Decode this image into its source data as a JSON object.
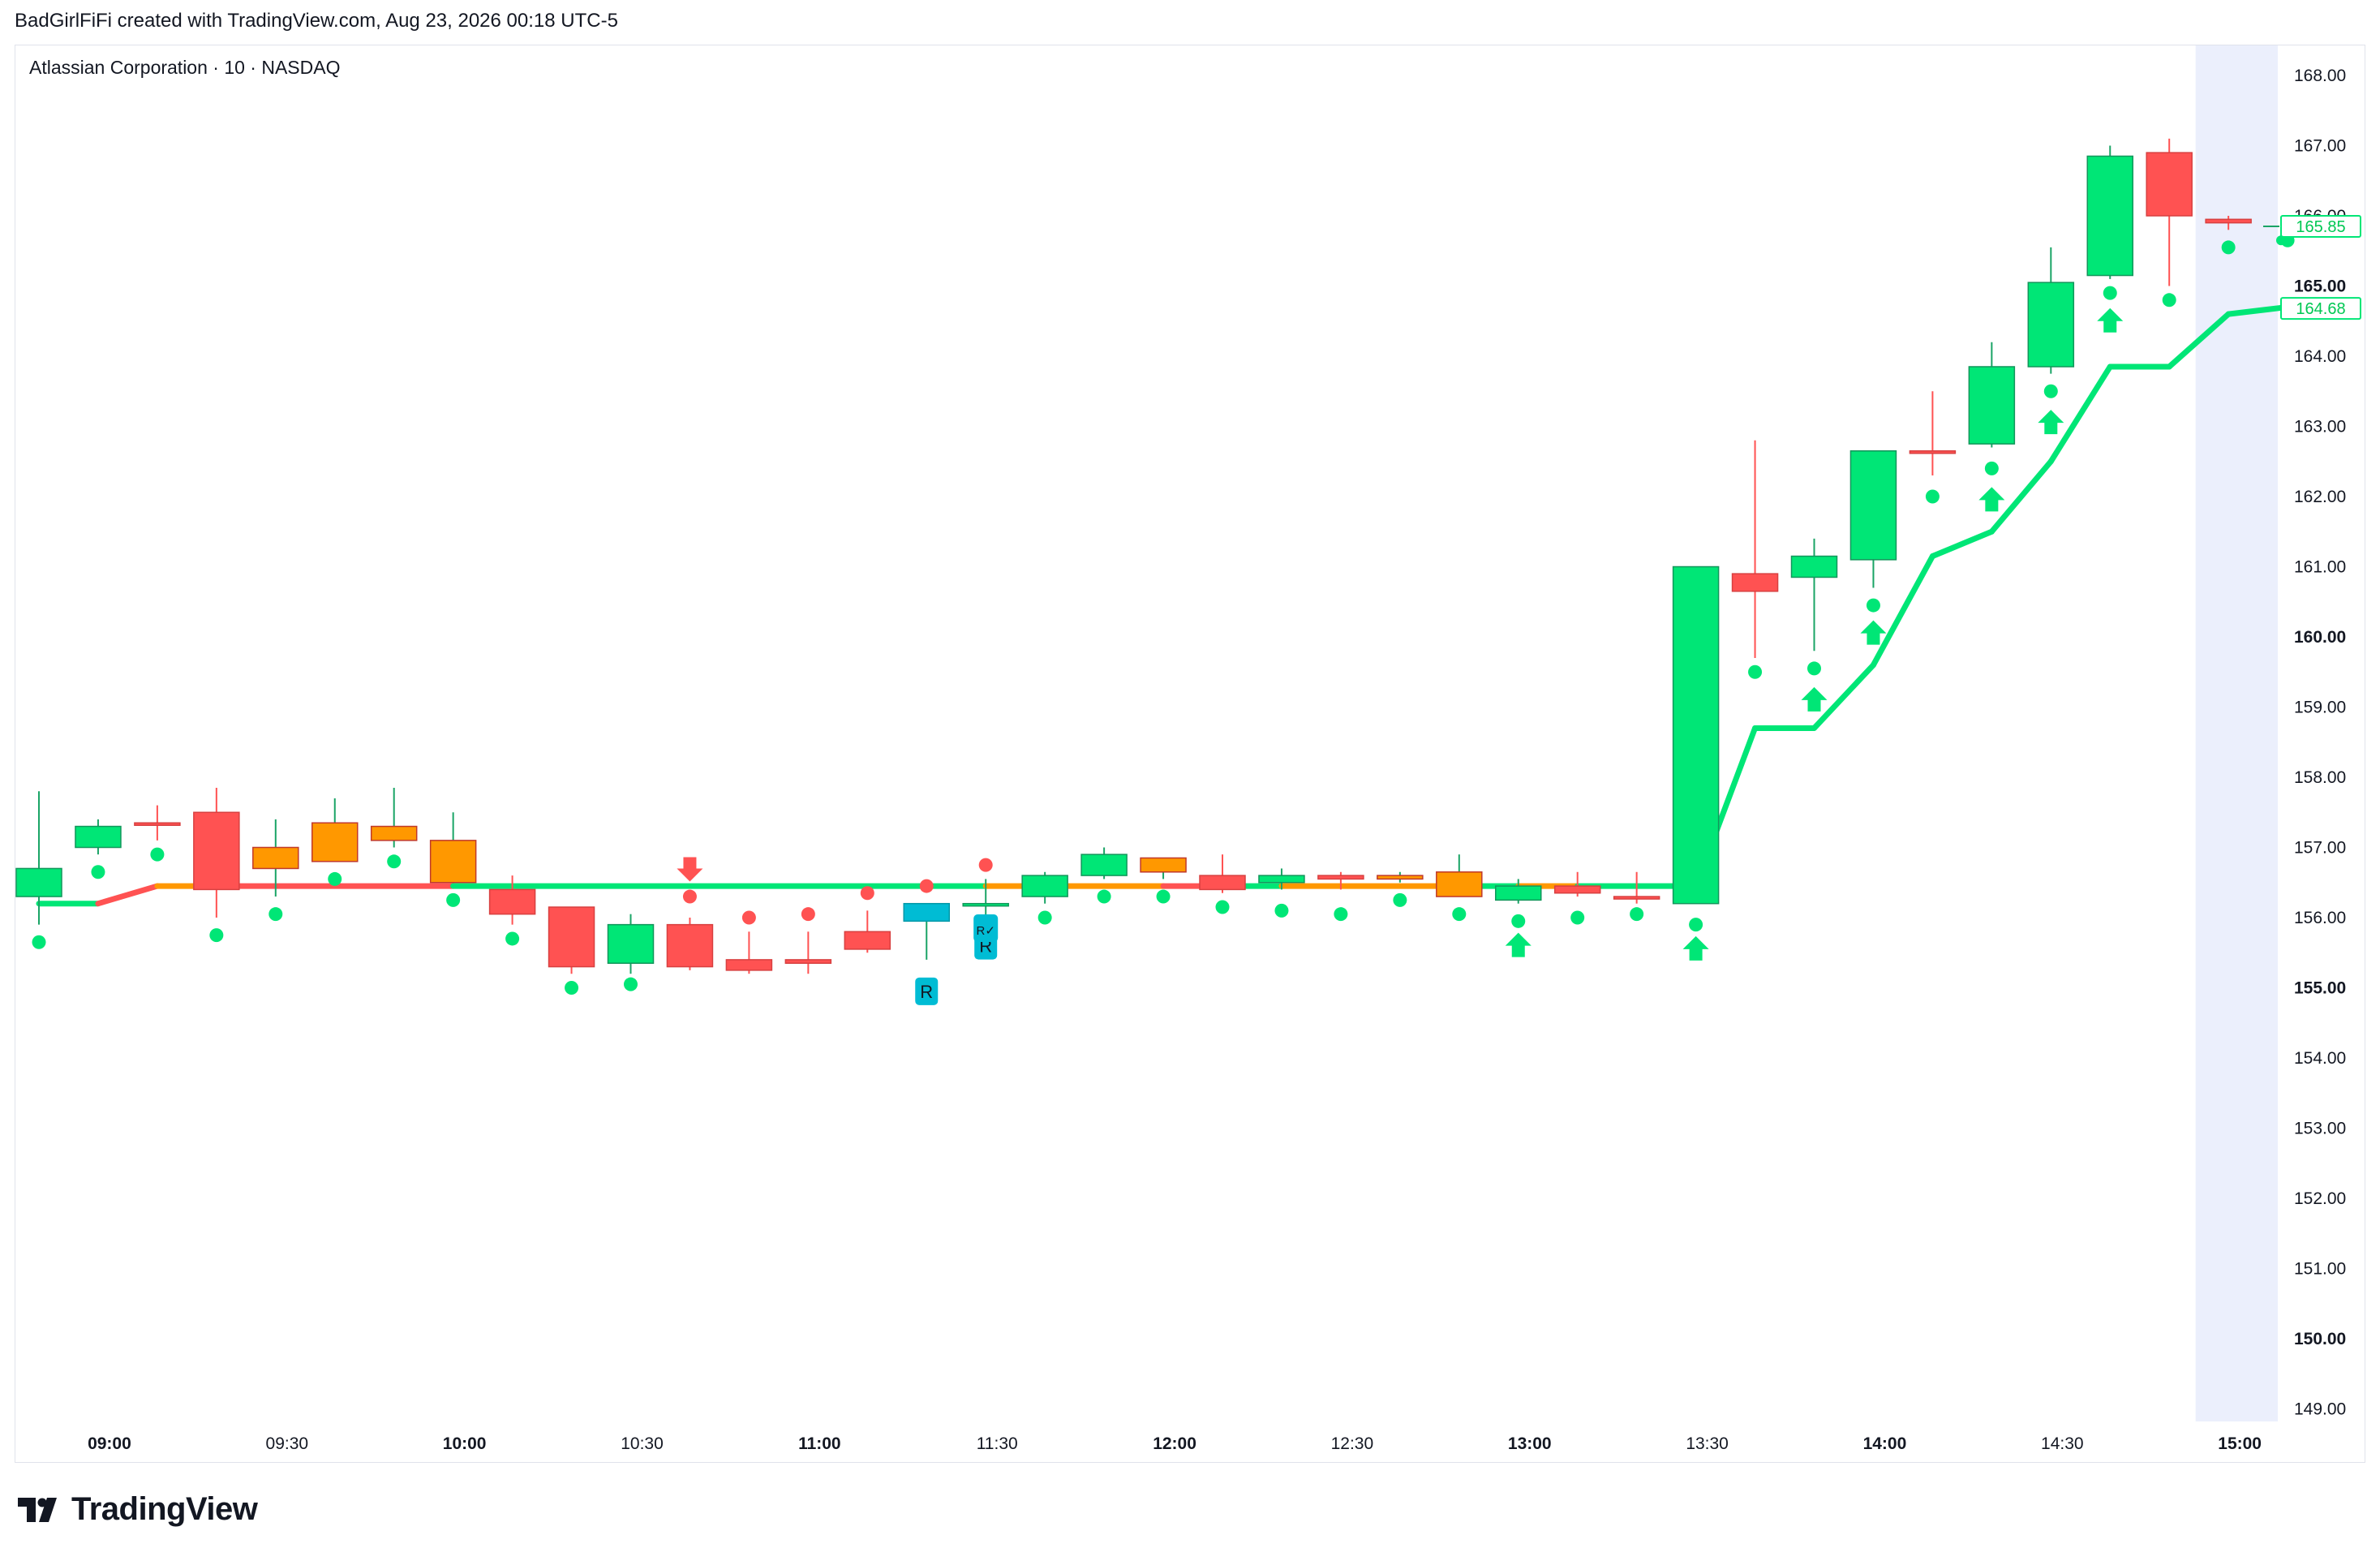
{
  "header": {
    "text": "BadGirlFiFi created with TradingView.com, Aug 23, 2026 00:18 UTC-5"
  },
  "symbol": {
    "title": "Atlassian Corporation · 10 · NASDAQ"
  },
  "brand": {
    "name": "TradingView"
  },
  "colors": {
    "up": "#00e676",
    "down": "#ff5252",
    "neutral": "#ff9800",
    "special": "#00bcd4",
    "highlight_band": "#ebeffc"
  },
  "chart_data": {
    "type": "candlestick",
    "ylim": [
      148.8,
      168.4
    ],
    "y_ticks": [
      {
        "value": 168,
        "label": "168.00",
        "bold": false
      },
      {
        "value": 167,
        "label": "167.00",
        "bold": false
      },
      {
        "value": 166,
        "label": "166.00",
        "bold": false
      },
      {
        "value": 165,
        "label": "165.00",
        "bold": true
      },
      {
        "value": 164,
        "label": "164.00",
        "bold": false
      },
      {
        "value": 163,
        "label": "163.00",
        "bold": false
      },
      {
        "value": 162,
        "label": "162.00",
        "bold": false
      },
      {
        "value": 161,
        "label": "161.00",
        "bold": false
      },
      {
        "value": 160,
        "label": "160.00",
        "bold": true
      },
      {
        "value": 159,
        "label": "159.00",
        "bold": false
      },
      {
        "value": 158,
        "label": "158.00",
        "bold": false
      },
      {
        "value": 157,
        "label": "157.00",
        "bold": false
      },
      {
        "value": 156,
        "label": "156.00",
        "bold": false
      },
      {
        "value": 155,
        "label": "155.00",
        "bold": true
      },
      {
        "value": 154,
        "label": "154.00",
        "bold": false
      },
      {
        "value": 153,
        "label": "153.00",
        "bold": false
      },
      {
        "value": 152,
        "label": "152.00",
        "bold": false
      },
      {
        "value": 151,
        "label": "151.00",
        "bold": false
      },
      {
        "value": 150,
        "label": "150.00",
        "bold": true
      },
      {
        "value": 149,
        "label": "149.00",
        "bold": false
      }
    ],
    "x_ticks": [
      {
        "index": 1,
        "label": "09:00",
        "bold": true
      },
      {
        "index": 4,
        "label": "09:30",
        "bold": false
      },
      {
        "index": 7,
        "label": "10:00",
        "bold": true
      },
      {
        "index": 10,
        "label": "10:30",
        "bold": false
      },
      {
        "index": 13,
        "label": "11:00",
        "bold": true
      },
      {
        "index": 16,
        "label": "11:30",
        "bold": false
      },
      {
        "index": 19,
        "label": "12:00",
        "bold": true
      },
      {
        "index": 22,
        "label": "12:30",
        "bold": false
      },
      {
        "index": 25,
        "label": "13:00",
        "bold": true
      },
      {
        "index": 28,
        "label": "13:30",
        "bold": false
      },
      {
        "index": 31,
        "label": "14:00",
        "bold": true
      },
      {
        "index": 34,
        "label": "14:30",
        "bold": false
      },
      {
        "index": 37,
        "label": "15:00",
        "bold": true
      }
    ],
    "candles": [
      {
        "time": "08:50",
        "open": 156.3,
        "high": 157.8,
        "low": 155.9,
        "close": 156.7,
        "color": "up"
      },
      {
        "time": "09:00",
        "open": 157.0,
        "high": 157.4,
        "low": 156.9,
        "close": 157.3,
        "color": "up"
      },
      {
        "time": "09:10",
        "open": 157.35,
        "high": 157.6,
        "low": 157.1,
        "close": 157.35,
        "color": "down"
      },
      {
        "time": "09:20",
        "open": 157.5,
        "high": 157.85,
        "low": 156.0,
        "close": 156.4,
        "color": "down"
      },
      {
        "time": "09:30",
        "open": 156.7,
        "high": 157.4,
        "low": 156.3,
        "close": 157.0,
        "color": "neutral"
      },
      {
        "time": "09:40",
        "open": 156.8,
        "high": 157.7,
        "low": 156.8,
        "close": 157.35,
        "color": "neutral"
      },
      {
        "time": "09:50",
        "open": 157.3,
        "high": 157.85,
        "low": 157.0,
        "close": 157.1,
        "color": "neutral"
      },
      {
        "time": "10:00",
        "open": 157.1,
        "high": 157.5,
        "low": 156.5,
        "close": 156.5,
        "color": "neutral"
      },
      {
        "time": "10:10",
        "open": 156.4,
        "high": 156.6,
        "low": 155.9,
        "close": 156.05,
        "color": "down"
      },
      {
        "time": "10:20",
        "open": 156.15,
        "high": 156.15,
        "low": 155.2,
        "close": 155.3,
        "color": "down"
      },
      {
        "time": "10:30",
        "open": 155.35,
        "high": 156.05,
        "low": 155.2,
        "close": 155.9,
        "color": "up"
      },
      {
        "time": "10:40",
        "open": 155.9,
        "high": 156.0,
        "low": 155.25,
        "close": 155.3,
        "color": "down"
      },
      {
        "time": "10:50",
        "open": 155.4,
        "high": 155.8,
        "low": 155.2,
        "close": 155.25,
        "color": "down"
      },
      {
        "time": "11:00",
        "open": 155.4,
        "high": 155.8,
        "low": 155.2,
        "close": 155.35,
        "color": "down"
      },
      {
        "time": "11:10",
        "open": 155.8,
        "high": 156.1,
        "low": 155.5,
        "close": 155.55,
        "color": "down"
      },
      {
        "time": "11:20",
        "open": 155.95,
        "high": 156.2,
        "low": 155.4,
        "close": 156.2,
        "color": "special"
      },
      {
        "time": "11:30",
        "open": 156.2,
        "high": 156.55,
        "low": 155.9,
        "close": 156.2,
        "color": "up"
      },
      {
        "time": "11:40",
        "open": 156.3,
        "high": 156.65,
        "low": 156.2,
        "close": 156.6,
        "color": "up"
      },
      {
        "time": "11:50",
        "open": 156.6,
        "high": 157.0,
        "low": 156.55,
        "close": 156.9,
        "color": "up"
      },
      {
        "time": "12:00",
        "open": 156.85,
        "high": 156.85,
        "low": 156.55,
        "close": 156.65,
        "color": "neutral"
      },
      {
        "time": "12:10",
        "open": 156.6,
        "high": 156.9,
        "low": 156.35,
        "close": 156.4,
        "color": "down"
      },
      {
        "time": "12:20",
        "open": 156.5,
        "high": 156.7,
        "low": 156.4,
        "close": 156.6,
        "color": "up"
      },
      {
        "time": "12:30",
        "open": 156.6,
        "high": 156.65,
        "low": 156.4,
        "close": 156.55,
        "color": "down"
      },
      {
        "time": "12:40",
        "open": 156.6,
        "high": 156.65,
        "low": 156.5,
        "close": 156.55,
        "color": "neutral"
      },
      {
        "time": "12:50",
        "open": 156.65,
        "high": 156.9,
        "low": 156.3,
        "close": 156.3,
        "color": "neutral"
      },
      {
        "time": "13:00",
        "open": 156.25,
        "high": 156.55,
        "low": 156.2,
        "close": 156.45,
        "color": "up"
      },
      {
        "time": "13:10",
        "open": 156.45,
        "high": 156.65,
        "low": 156.3,
        "close": 156.35,
        "color": "down"
      },
      {
        "time": "13:20",
        "open": 156.3,
        "high": 156.65,
        "low": 156.2,
        "close": 156.3,
        "color": "down"
      },
      {
        "time": "13:30",
        "open": 156.2,
        "high": 161.0,
        "low": 156.2,
        "close": 161.0,
        "color": "up"
      },
      {
        "time": "13:40",
        "open": 160.9,
        "high": 162.8,
        "low": 159.7,
        "close": 160.65,
        "color": "down"
      },
      {
        "time": "13:50",
        "open": 160.85,
        "high": 161.4,
        "low": 159.8,
        "close": 161.15,
        "color": "up"
      },
      {
        "time": "14:00",
        "open": 161.1,
        "high": 162.65,
        "low": 160.7,
        "close": 162.65,
        "color": "up"
      },
      {
        "time": "14:10",
        "open": 162.65,
        "high": 163.5,
        "low": 162.3,
        "close": 162.65,
        "color": "down"
      },
      {
        "time": "14:20",
        "open": 162.75,
        "high": 164.2,
        "low": 162.7,
        "close": 163.85,
        "color": "up"
      },
      {
        "time": "14:30",
        "open": 163.85,
        "high": 165.55,
        "low": 163.75,
        "close": 165.05,
        "color": "up"
      },
      {
        "time": "14:40",
        "open": 165.15,
        "high": 167.0,
        "low": 165.1,
        "close": 166.85,
        "color": "up"
      },
      {
        "time": "14:50",
        "open": 166.9,
        "high": 167.1,
        "low": 165.0,
        "close": 166.0,
        "color": "down"
      },
      {
        "time": "15:00",
        "open": 165.95,
        "high": 166.0,
        "low": 165.8,
        "close": 165.9,
        "color": "down"
      }
    ],
    "trail_line": [
      {
        "index": 0,
        "value": 156.2,
        "color": "up"
      },
      {
        "index": 1,
        "value": 156.2,
        "color": "up"
      },
      {
        "index": 2,
        "value": 156.45,
        "color": "down"
      },
      {
        "index": 3,
        "value": 156.45,
        "color": "neutral"
      },
      {
        "index": 7,
        "value": 156.45,
        "color": "down"
      },
      {
        "index": 16,
        "value": 156.45,
        "color": "up"
      },
      {
        "index": 19,
        "value": 156.45,
        "color": "neutral"
      },
      {
        "index": 20,
        "value": 156.45,
        "color": "down"
      },
      {
        "index": 21,
        "value": 156.45,
        "color": "up"
      },
      {
        "index": 24,
        "value": 156.45,
        "color": "neutral"
      },
      {
        "index": 25,
        "value": 156.45,
        "color": "up"
      },
      {
        "index": 26,
        "value": 156.45,
        "color": "neutral"
      },
      {
        "index": 27,
        "value": 156.45,
        "color": "up"
      },
      {
        "index": 28,
        "value": 156.45,
        "color": "up"
      },
      {
        "index": 29,
        "value": 158.7,
        "color": "up"
      },
      {
        "index": 30,
        "value": 158.7,
        "color": "up"
      },
      {
        "index": 31,
        "value": 159.6,
        "color": "up"
      },
      {
        "index": 32,
        "value": 161.15,
        "color": "up"
      },
      {
        "index": 33,
        "value": 161.5,
        "color": "up"
      },
      {
        "index": 34,
        "value": 162.5,
        "color": "up"
      },
      {
        "index": 35,
        "value": 163.85,
        "color": "up"
      },
      {
        "index": 36,
        "value": 163.85,
        "color": "up"
      },
      {
        "index": 37,
        "value": 164.6,
        "color": "up"
      },
      {
        "index": 38,
        "value": 164.7,
        "color": "up"
      }
    ],
    "dots": [
      {
        "index": 0,
        "value": 155.65,
        "color": "up"
      },
      {
        "index": 1,
        "value": 156.65,
        "color": "up"
      },
      {
        "index": 2,
        "value": 156.9,
        "color": "up"
      },
      {
        "index": 3,
        "value": 155.75,
        "color": "up"
      },
      {
        "index": 4,
        "value": 156.05,
        "color": "up"
      },
      {
        "index": 5,
        "value": 156.55,
        "color": "up"
      },
      {
        "index": 6,
        "value": 156.8,
        "color": "up"
      },
      {
        "index": 7,
        "value": 156.25,
        "color": "up"
      },
      {
        "index": 8,
        "value": 155.7,
        "color": "up"
      },
      {
        "index": 9,
        "value": 155.0,
        "color": "up"
      },
      {
        "index": 10,
        "value": 155.05,
        "color": "up"
      },
      {
        "index": 11,
        "value": 156.3,
        "color": "down"
      },
      {
        "index": 12,
        "value": 156.0,
        "color": "down"
      },
      {
        "index": 13,
        "value": 156.05,
        "color": "down"
      },
      {
        "index": 14,
        "value": 156.35,
        "color": "down"
      },
      {
        "index": 15,
        "value": 156.45,
        "color": "down"
      },
      {
        "index": 16,
        "value": 156.75,
        "color": "down"
      },
      {
        "index": 17,
        "value": 156.0,
        "color": "up"
      },
      {
        "index": 18,
        "value": 156.3,
        "color": "up"
      },
      {
        "index": 19,
        "value": 156.3,
        "color": "up"
      },
      {
        "index": 20,
        "value": 156.15,
        "color": "up"
      },
      {
        "index": 21,
        "value": 156.1,
        "color": "up"
      },
      {
        "index": 22,
        "value": 156.05,
        "color": "up"
      },
      {
        "index": 23,
        "value": 156.25,
        "color": "up"
      },
      {
        "index": 24,
        "value": 156.05,
        "color": "up"
      },
      {
        "index": 25,
        "value": 155.95,
        "color": "up"
      },
      {
        "index": 26,
        "value": 156.0,
        "color": "up"
      },
      {
        "index": 27,
        "value": 156.05,
        "color": "up"
      },
      {
        "index": 28,
        "value": 155.9,
        "color": "up"
      },
      {
        "index": 29,
        "value": 159.5,
        "color": "up"
      },
      {
        "index": 30,
        "value": 159.55,
        "color": "up"
      },
      {
        "index": 31,
        "value": 160.45,
        "color": "up"
      },
      {
        "index": 32,
        "value": 162.0,
        "color": "up"
      },
      {
        "index": 33,
        "value": 162.4,
        "color": "up"
      },
      {
        "index": 34,
        "value": 163.5,
        "color": "up"
      },
      {
        "index": 35,
        "value": 164.9,
        "color": "up"
      },
      {
        "index": 36,
        "value": 164.8,
        "color": "up"
      },
      {
        "index": 37,
        "value": 165.55,
        "color": "up"
      },
      {
        "index": 38,
        "value": 165.65,
        "color": "up"
      }
    ],
    "arrows": [
      {
        "index": 11,
        "value": 156.7,
        "direction": "down",
        "color": "down"
      },
      {
        "index": 25,
        "value": 155.6,
        "direction": "up",
        "color": "up"
      },
      {
        "index": 28,
        "value": 155.55,
        "direction": "up",
        "color": "up"
      },
      {
        "index": 30,
        "value": 159.1,
        "direction": "up",
        "color": "up"
      },
      {
        "index": 31,
        "value": 160.05,
        "direction": "up",
        "color": "up"
      },
      {
        "index": 33,
        "value": 161.95,
        "direction": "up",
        "color": "up"
      },
      {
        "index": 34,
        "value": 163.05,
        "direction": "up",
        "color": "up"
      },
      {
        "index": 35,
        "value": 164.5,
        "direction": "up",
        "color": "up"
      }
    ],
    "labels": [
      {
        "index": 15,
        "value": 154.95,
        "text": "R",
        "color": "special"
      },
      {
        "index": 16,
        "value": 155.6,
        "text": "R",
        "color": "special"
      },
      {
        "index": 16,
        "value": 155.85,
        "text": "R✓",
        "color": "special"
      }
    ],
    "price_tags": [
      {
        "value": 165.85,
        "label": "165.85",
        "style": "outline"
      },
      {
        "value": 164.68,
        "label": "164.68",
        "style": "outline"
      }
    ],
    "highlight_from_index": 37
  }
}
